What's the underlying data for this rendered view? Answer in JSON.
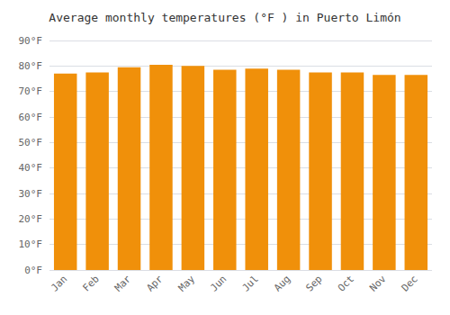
{
  "chart_data": {
    "type": "bar",
    "title": "Average monthly temperatures (°F ) in Puerto Limón",
    "categories": [
      "Jan",
      "Feb",
      "Mar",
      "Apr",
      "May",
      "Jun",
      "Jul",
      "Aug",
      "Sep",
      "Oct",
      "Nov",
      "Dec"
    ],
    "values": [
      77,
      77.5,
      79.5,
      80.5,
      80,
      78.5,
      79,
      78.5,
      77.5,
      77.5,
      76.5,
      76.5
    ],
    "color": "#F0900A",
    "ylim": [
      0,
      90
    ],
    "yticks": [
      {
        "value": 0,
        "label": "0°F"
      },
      {
        "value": 10,
        "label": "10°F"
      },
      {
        "value": 20,
        "label": "20°F"
      },
      {
        "value": 30,
        "label": "30°F"
      },
      {
        "value": 40,
        "label": "40°F"
      },
      {
        "value": 50,
        "label": "50°F"
      },
      {
        "value": 60,
        "label": "60°F"
      },
      {
        "value": 70,
        "label": "70°F"
      },
      {
        "value": 80,
        "label": "80°F"
      },
      {
        "value": 90,
        "label": "90°F"
      }
    ],
    "grid": true
  }
}
